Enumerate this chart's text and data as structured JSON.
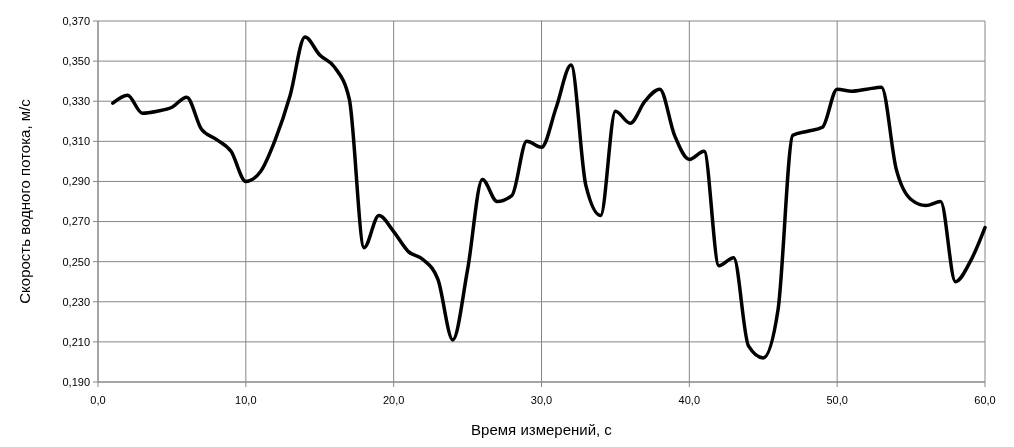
{
  "chart_data": {
    "type": "line",
    "xlabel": "Время измерений, с",
    "ylabel": "Скорость водного потока, м/с",
    "xlim": [
      0,
      60
    ],
    "ylim": [
      0.19,
      0.37
    ],
    "xticks": [
      {
        "value": 0,
        "label": "0,0"
      },
      {
        "value": 10,
        "label": "10,0"
      },
      {
        "value": 20,
        "label": "20,0"
      },
      {
        "value": 30,
        "label": "30,0"
      },
      {
        "value": 40,
        "label": "40,0"
      },
      {
        "value": 50,
        "label": "50,0"
      },
      {
        "value": 60,
        "label": "60,0"
      }
    ],
    "yticks": [
      {
        "value": 0.19,
        "label": "0,190"
      },
      {
        "value": 0.21,
        "label": "0,210"
      },
      {
        "value": 0.23,
        "label": "0,230"
      },
      {
        "value": 0.25,
        "label": "0,250"
      },
      {
        "value": 0.27,
        "label": "0,270"
      },
      {
        "value": 0.29,
        "label": "0,290"
      },
      {
        "value": 0.31,
        "label": "0,310"
      },
      {
        "value": 0.33,
        "label": "0,330"
      },
      {
        "value": 0.35,
        "label": "0,350"
      },
      {
        "value": 0.37,
        "label": "0,370"
      }
    ],
    "grid": true,
    "marker": "none",
    "line_style": "solid",
    "x": [
      1,
      2,
      3,
      4,
      5,
      6,
      7,
      8,
      9,
      10,
      11,
      12,
      13,
      14,
      15,
      16,
      17,
      18,
      19,
      20,
      21,
      22,
      23,
      24,
      25,
      26,
      27,
      28,
      29,
      30,
      31,
      32,
      33,
      34,
      35,
      36,
      37,
      38,
      39,
      40,
      41,
      42,
      43,
      44,
      45,
      46,
      47,
      48,
      49,
      50,
      51,
      52,
      53,
      54,
      55,
      56,
      57,
      58,
      59,
      60
    ],
    "series": [
      {
        "color": "#000000",
        "values": [
          0.329,
          0.333,
          0.324,
          0.325,
          0.327,
          0.332,
          0.316,
          0.311,
          0.305,
          0.29,
          0.295,
          0.311,
          0.333,
          0.362,
          0.353,
          0.347,
          0.331,
          0.257,
          0.273,
          0.265,
          0.255,
          0.251,
          0.241,
          0.211,
          0.246,
          0.291,
          0.28,
          0.283,
          0.31,
          0.307,
          0.327,
          0.348,
          0.288,
          0.273,
          0.325,
          0.319,
          0.33,
          0.336,
          0.313,
          0.301,
          0.305,
          0.248,
          0.252,
          0.208,
          0.202,
          0.226,
          0.313,
          0.315,
          0.317,
          0.336,
          0.335,
          0.336,
          0.337,
          0.296,
          0.281,
          0.278,
          0.28,
          0.24,
          0.25,
          0.267
        ]
      }
    ]
  }
}
